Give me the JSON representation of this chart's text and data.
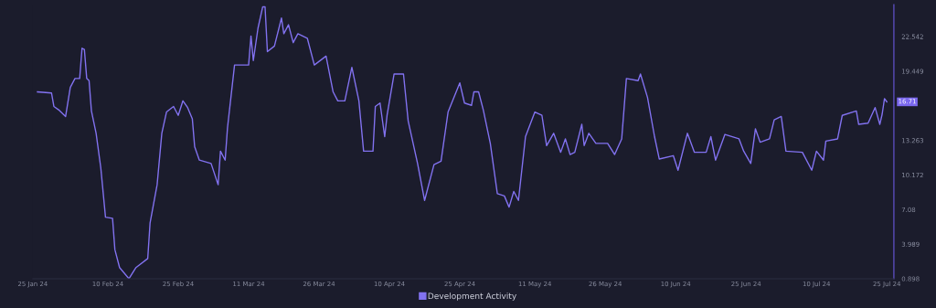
{
  "chart_data": {
    "type": "line",
    "x": [
      "2024-01-26",
      "2024-01-29",
      "2024-01-29T12:00",
      "2024-01-30T12:00",
      "2024-02-01",
      "2024-02-02",
      "2024-02-03",
      "2024-02-04",
      "2024-02-04T12:00",
      "2024-02-05",
      "2024-02-05T12:00",
      "2024-02-06",
      "2024-02-06T12:00",
      "2024-02-07T12:00",
      "2024-02-08T12:00",
      "2024-02-09T12:00",
      "2024-02-11",
      "2024-02-11T12:00",
      "2024-02-12T12:00",
      "2024-02-14T12:00",
      "2024-02-16",
      "2024-02-18T12:00",
      "2024-02-19",
      "2024-02-20T12:00",
      "2024-02-21T12:00",
      "2024-02-22T12:00",
      "2024-02-24",
      "2024-02-25",
      "2024-02-26",
      "2024-02-27",
      "2024-02-28",
      "2024-02-28T12:00",
      "2024-02-29T12:00",
      "2024-03-03",
      "2024-03-04T12:00",
      "2024-03-05",
      "2024-03-06",
      "2024-03-06T12:00",
      "2024-03-08",
      "2024-03-11",
      "2024-03-11T12:00",
      "2024-03-12",
      "2024-03-13",
      "2024-03-14",
      "2024-03-14T12:00",
      "2024-03-15",
      "2024-03-16T12:00",
      "2024-03-18",
      "2024-03-18T12:00",
      "2024-03-19T12:00",
      "2024-03-20T12:00",
      "2024-03-21T12:00",
      "2024-03-23T12:00",
      "2024-03-25",
      "2024-03-27T12:00",
      "2024-03-29",
      "2024-03-30",
      "2024-03-31T12:00",
      "2024-04-02",
      "2024-04-03T12:00",
      "2024-04-04T12:00",
      "2024-04-06T12:00",
      "2024-04-07",
      "2024-04-08",
      "2024-04-09",
      "2024-04-09T12:00",
      "2024-04-11",
      "2024-04-13",
      "2024-04-14",
      "2024-04-16",
      "2024-04-17T12:00",
      "2024-04-19T12:00",
      "2024-04-21",
      "2024-04-22T12:00",
      "2024-04-25",
      "2024-04-26",
      "2024-04-27T12:00",
      "2024-04-28",
      "2024-04-29",
      "2024-04-30",
      "2024-05-01T12:00",
      "2024-05-03",
      "2024-05-04T12:00",
      "2024-05-05T12:00",
      "2024-05-06T12:00",
      "2024-05-07T12:00",
      "2024-05-09",
      "2024-05-11",
      "2024-05-12T12:00",
      "2024-05-13T12:00",
      "2024-05-15",
      "2024-05-16T12:00",
      "2024-05-17T12:00",
      "2024-05-18T12:00",
      "2024-05-19T12:00",
      "2024-05-21",
      "2024-05-21T12:00",
      "2024-05-22T12:00",
      "2024-05-24",
      "2024-05-26T12:00",
      "2024-05-28",
      "2024-05-29T12:00",
      "2024-05-30T12:00",
      "2024-06-02",
      "2024-06-02T12:00",
      "2024-06-04",
      "2024-06-05T12:00",
      "2024-06-06T12:00",
      "2024-06-09T12:00",
      "2024-06-10T12:00",
      "2024-06-12T12:00",
      "2024-06-14",
      "2024-06-16T12:00",
      "2024-06-17T12:00",
      "2024-06-18T12:00",
      "2024-06-20T12:00",
      "2024-06-23T12:00",
      "2024-06-24T12:00",
      "2024-06-26",
      "2024-06-27",
      "2024-06-28",
      "2024-06-30",
      "2024-07-01",
      "2024-07-02T12:00",
      "2024-07-03T12:00",
      "2024-07-07",
      "2024-07-09",
      "2024-07-10",
      "2024-07-11T12:00",
      "2024-07-12",
      "2024-07-14T12:00",
      "2024-07-15T12:00",
      "2024-07-18T12:00",
      "2024-07-19",
      "2024-07-21",
      "2024-07-22T12:00",
      "2024-07-23T12:00",
      "2024-07-24",
      "2024-07-24T12:00",
      "2024-07-25"
    ],
    "series": [
      {
        "name": "Development Activity",
        "color": "#8272f0",
        "values": [
          17.6,
          17.5,
          16.3,
          16.0,
          15.4,
          18.0,
          18.8,
          18.8,
          21.5,
          21.4,
          18.8,
          18.6,
          15.9,
          13.9,
          10.8,
          6.4,
          6.3,
          3.5,
          1.9,
          0.9,
          1.9,
          2.7,
          5.9,
          9.3,
          13.9,
          15.8,
          16.3,
          15.5,
          16.8,
          16.2,
          15.2,
          12.7,
          11.5,
          11.2,
          9.3,
          12.3,
          11.5,
          14.4,
          20.0,
          20.0,
          22.6,
          20.4,
          23.3,
          25.2,
          25.2,
          21.2,
          21.7,
          24.2,
          22.8,
          23.6,
          22.0,
          22.8,
          22.4,
          20.0,
          20.8,
          17.6,
          16.8,
          16.8,
          19.8,
          16.8,
          12.3,
          12.3,
          16.3,
          16.6,
          13.6,
          15.5,
          19.2,
          19.2,
          15.0,
          11.2,
          7.9,
          11.1,
          11.4,
          15.8,
          18.4,
          16.6,
          16.4,
          17.6,
          17.6,
          16.0,
          13.0,
          8.5,
          8.3,
          7.3,
          8.7,
          7.9,
          13.6,
          15.8,
          15.5,
          12.8,
          13.9,
          12.2,
          13.4,
          12.0,
          12.2,
          14.7,
          12.8,
          13.9,
          13.0,
          13.0,
          12.0,
          13.4,
          18.8,
          18.6,
          19.2,
          17.1,
          13.6,
          11.6,
          11.9,
          10.6,
          13.9,
          12.2,
          12.2,
          13.6,
          11.5,
          13.8,
          13.4,
          12.3,
          11.2,
          14.3,
          13.1,
          13.4,
          15.1,
          15.4,
          12.3,
          12.2,
          10.6,
          12.3,
          11.5,
          13.2,
          13.4,
          15.5,
          15.9,
          14.7,
          14.8,
          16.2,
          14.7,
          15.6,
          17.0,
          16.71
        ]
      }
    ],
    "xlim": [
      "2024-01-25",
      "2024-07-26T12:00"
    ],
    "xticks": [
      {
        "value": "2024-01-25",
        "label": "25 Jan 24"
      },
      {
        "value": "2024-02-10",
        "label": "10 Feb 24"
      },
      {
        "value": "2024-02-25",
        "label": "25 Feb 24"
      },
      {
        "value": "2024-03-11",
        "label": "11 Mar 24"
      },
      {
        "value": "2024-03-26",
        "label": "26 Mar 24"
      },
      {
        "value": "2024-04-10",
        "label": "10 Apr 24"
      },
      {
        "value": "2024-04-25",
        "label": "25 Apr 24"
      },
      {
        "value": "2024-05-11",
        "label": "11 May 24"
      },
      {
        "value": "2024-05-26",
        "label": "26 May 24"
      },
      {
        "value": "2024-06-10",
        "label": "10 Jun 24"
      },
      {
        "value": "2024-06-25",
        "label": "25 Jun 24"
      },
      {
        "value": "2024-07-10",
        "label": "10 Jul 24"
      },
      {
        "value": "2024-07-25",
        "label": "25 Jul 24"
      }
    ],
    "ylim": [
      0.898,
      25.4
    ],
    "yticks": [
      0.898,
      3.989,
      7.08,
      10.172,
      13.263,
      19.449,
      22.542
    ],
    "annotations": [
      {
        "text": "16.71",
        "x": "2024-07-25",
        "y": 16.71
      }
    ],
    "legend": "bottom",
    "grid": false,
    "marker": "none",
    "line_style": "solid"
  }
}
